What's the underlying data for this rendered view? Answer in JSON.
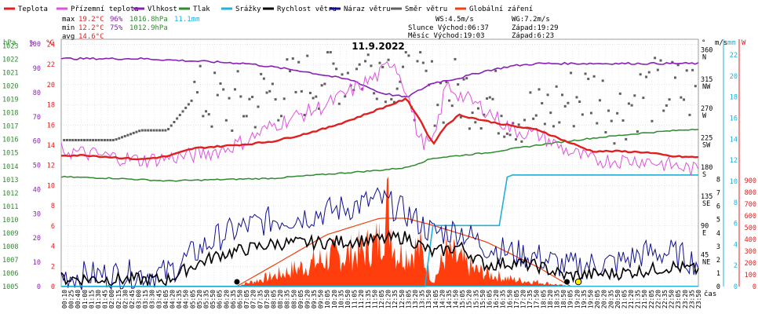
{
  "title": "11.9.2022",
  "legend": [
    {
      "label": "Teplota",
      "color": "#e02020"
    },
    {
      "label": "Přízemní teplota",
      "color": "#e050e0"
    },
    {
      "label": "Vlhkost",
      "color": "#8a1fb8"
    },
    {
      "label": "Tlak",
      "color": "#2e8b2e"
    },
    {
      "label": "Srážky",
      "color": "#20b0d8"
    },
    {
      "label": "Rychlost větru",
      "color": "#000000"
    },
    {
      "label": "Náraz větru",
      "color": "#101090"
    },
    {
      "label": "Směr větru",
      "color": "#606060"
    },
    {
      "label": "Globální záření",
      "color": "#f04010"
    }
  ],
  "stats": {
    "max_label": "max",
    "max_temp": "19.2°C",
    "max_hum": "96%",
    "max_press": "1016.8hPa",
    "rain_total": "11.1mm",
    "min_label": "min",
    "min_temp": "12.2°C",
    "min_hum": "75%",
    "min_press": "1012.9hPa",
    "avg_label": "avg",
    "avg_temp": "14.6°C"
  },
  "wind_info": {
    "ws": "WS:4.5m/s",
    "wg": "WG:7.2m/s",
    "sun_rise": "Slunce Východ:06:37",
    "sun_set": "Západ:19:29",
    "moon_rise": "Měsíc  Východ:19:03",
    "moon_set": "Západ:6:23"
  },
  "axes": {
    "unit_hpa": "hPa",
    "unit_pct": "%",
    "unit_c": "°C",
    "unit_deg": "°",
    "unit_ms": "m/s",
    "unit_mm": "mm",
    "unit_w": "W",
    "xlabel": "čas",
    "hpa_ticks": [
      "1023",
      "1022",
      "1021",
      "1020",
      "1019",
      "1018",
      "1017",
      "1016",
      "1015",
      "1014",
      "1013",
      "1012",
      "1011",
      "1010",
      "1009",
      "1008",
      "1007",
      "1006",
      "1005"
    ],
    "pct_ticks": [
      "100",
      "90",
      "80",
      "70",
      "60",
      "50",
      "40",
      "30",
      "20",
      "10",
      "0"
    ],
    "c_ticks": [
      "24",
      "22",
      "20",
      "18",
      "16",
      "14",
      "12",
      "10",
      "8",
      "6",
      "4",
      "2",
      "0"
    ],
    "dir_ticks": [
      {
        "v": "360",
        "d": "N"
      },
      {
        "v": "315",
        "d": "NW"
      },
      {
        "v": "270",
        "d": "W"
      },
      {
        "v": "225",
        "d": "SW"
      },
      {
        "v": "180",
        "d": "S"
      },
      {
        "v": "135",
        "d": "SE"
      },
      {
        "v": "90",
        "d": "E"
      },
      {
        "v": "45",
        "d": "NE"
      }
    ],
    "ms_ticks": [
      "8",
      "7",
      "6",
      "5",
      "4",
      "3",
      "2",
      "1",
      "0"
    ],
    "mm_ticks": [
      "22",
      "20",
      "18",
      "16",
      "14",
      "12",
      "10",
      "8",
      "6",
      "4",
      "2",
      "0"
    ],
    "w_ticks": [
      "900",
      "800",
      "700",
      "600",
      "500",
      "400",
      "300",
      "200",
      "100",
      "0"
    ],
    "time_ticks": [
      "00:10",
      "00:25",
      "00:40",
      "01:00",
      "01:15",
      "01:30",
      "01:45",
      "02:00",
      "02:15",
      "02:30",
      "02:45",
      "03:00",
      "03:15",
      "03:30",
      "03:45",
      "04:05",
      "04:20",
      "04:35",
      "04:50",
      "05:05",
      "05:20",
      "05:35",
      "05:50",
      "06:05",
      "06:20",
      "06:35",
      "06:50",
      "07:05",
      "07:20",
      "07:35",
      "07:50",
      "08:05",
      "08:20",
      "08:35",
      "08:50",
      "09:05",
      "09:20",
      "09:35",
      "09:50",
      "10:05",
      "10:20",
      "10:35",
      "10:50",
      "11:05",
      "11:20",
      "11:35",
      "11:50",
      "12:05",
      "12:20",
      "12:35",
      "12:50",
      "13:05",
      "13:20",
      "13:35",
      "13:50",
      "14:05",
      "14:20",
      "14:35",
      "14:50",
      "15:05",
      "15:20",
      "15:35",
      "15:50",
      "16:05",
      "16:20",
      "16:35",
      "16:50",
      "17:05",
      "17:20",
      "17:35",
      "17:50",
      "18:05",
      "18:20",
      "18:35",
      "18:50",
      "19:05",
      "19:20",
      "19:35",
      "19:50",
      "20:05",
      "20:20",
      "20:35",
      "20:50",
      "21:05",
      "21:20",
      "21:35",
      "21:50",
      "22:05",
      "22:20",
      "22:35",
      "22:50",
      "23:05",
      "23:20",
      "23:35",
      "23:50"
    ]
  },
  "chart_data": {
    "type": "line",
    "title": "11.9.2022",
    "x_unit": "hours",
    "x_range": [
      0,
      24
    ],
    "temperature_c": [
      [
        0,
        13.0
      ],
      [
        1,
        13.0
      ],
      [
        2,
        12.8
      ],
      [
        3,
        12.6
      ],
      [
        4,
        12.9
      ],
      [
        5,
        13.7
      ],
      [
        6,
        13.9
      ],
      [
        7,
        14.1
      ],
      [
        8,
        14.4
      ],
      [
        9,
        15.0
      ],
      [
        10,
        15.7
      ],
      [
        11,
        16.6
      ],
      [
        12,
        17.6
      ],
      [
        13,
        18.6
      ],
      [
        13.5,
        16.6
      ],
      [
        14,
        14.1
      ],
      [
        14.5,
        16.0
      ],
      [
        15,
        17.0
      ],
      [
        16,
        16.4
      ],
      [
        17,
        15.9
      ],
      [
        18,
        15.5
      ],
      [
        19,
        14.4
      ],
      [
        20,
        13.4
      ],
      [
        21,
        13.4
      ],
      [
        22,
        13.3
      ],
      [
        23,
        12.9
      ],
      [
        24,
        12.8
      ]
    ],
    "ground_temp_c": [
      [
        0,
        13.5
      ],
      [
        3,
        12.5
      ],
      [
        5,
        13.0
      ],
      [
        6,
        13.5
      ],
      [
        7,
        14.5
      ],
      [
        8,
        16.0
      ],
      [
        9,
        17.0
      ],
      [
        10,
        18.0
      ],
      [
        11,
        19.5
      ],
      [
        12,
        21.0
      ],
      [
        12.5,
        22.5
      ],
      [
        13,
        19.5
      ],
      [
        13.5,
        14.5
      ],
      [
        14,
        14.0
      ],
      [
        14.5,
        20.0
      ],
      [
        15,
        19.0
      ],
      [
        16,
        17.5
      ],
      [
        17,
        15.5
      ],
      [
        18,
        15.0
      ],
      [
        19,
        13.5
      ],
      [
        20,
        12.5
      ],
      [
        22,
        12.5
      ],
      [
        23,
        12.0
      ],
      [
        24,
        11.5
      ]
    ],
    "humidity_pct": [
      [
        0,
        94
      ],
      [
        3,
        94
      ],
      [
        5,
        93
      ],
      [
        7,
        92
      ],
      [
        9,
        89
      ],
      [
        11,
        85
      ],
      [
        12,
        80
      ],
      [
        13,
        78
      ],
      [
        14,
        84
      ],
      [
        15,
        86
      ],
      [
        16,
        89
      ],
      [
        17,
        91
      ],
      [
        18,
        92
      ],
      [
        20,
        92
      ],
      [
        22,
        92
      ],
      [
        24,
        92
      ]
    ],
    "pressure_hpa": [
      [
        0,
        1013.2
      ],
      [
        2,
        1013.1
      ],
      [
        4,
        1012.9
      ],
      [
        6,
        1013.0
      ],
      [
        8,
        1013.1
      ],
      [
        10,
        1013.4
      ],
      [
        12,
        1013.7
      ],
      [
        13,
        1013.9
      ],
      [
        14,
        1014.6
      ],
      [
        15,
        1014.8
      ],
      [
        16,
        1015.0
      ],
      [
        17,
        1015.3
      ],
      [
        18,
        1015.6
      ],
      [
        20,
        1016.1
      ],
      [
        22,
        1016.5
      ],
      [
        24,
        1016.8
      ]
    ],
    "rain_mm": [
      [
        0,
        0
      ],
      [
        13.7,
        0
      ],
      [
        14,
        5.8
      ],
      [
        16.5,
        5.8
      ],
      [
        16.8,
        10.4
      ],
      [
        17,
        10.6
      ],
      [
        24,
        10.6
      ]
    ],
    "wind_speed_ms": [
      [
        0,
        0.6
      ],
      [
        4,
        0.5
      ],
      [
        5,
        1.6
      ],
      [
        6,
        2.4
      ],
      [
        8,
        3.2
      ],
      [
        10,
        3.3
      ],
      [
        11,
        3.4
      ],
      [
        12,
        3.5
      ],
      [
        13,
        3.7
      ],
      [
        14,
        2.5
      ],
      [
        15,
        3.0
      ],
      [
        16,
        1.6
      ],
      [
        17,
        1.8
      ],
      [
        18,
        1.5
      ],
      [
        19,
        0.8
      ],
      [
        21,
        1.0
      ],
      [
        22,
        1.2
      ],
      [
        23,
        1.5
      ],
      [
        24,
        1.2
      ]
    ],
    "wind_gust_ms": [
      [
        0,
        0.8
      ],
      [
        4,
        1.0
      ],
      [
        5,
        2.5
      ],
      [
        6,
        3.8
      ],
      [
        7,
        4.5
      ],
      [
        8,
        5.0
      ],
      [
        9,
        5.2
      ],
      [
        10,
        5.6
      ],
      [
        11,
        6.0
      ],
      [
        12,
        6.5
      ],
      [
        13,
        5.5
      ],
      [
        14,
        4.0
      ],
      [
        15,
        4.2
      ],
      [
        16,
        3.0
      ],
      [
        17,
        2.5
      ],
      [
        18,
        2.2
      ],
      [
        19,
        1.5
      ],
      [
        21,
        1.8
      ],
      [
        22,
        2.5
      ],
      [
        23,
        2.5
      ],
      [
        24,
        1.8
      ]
    ],
    "wind_dir_deg": [
      [
        0,
        225
      ],
      [
        1,
        225
      ],
      [
        2,
        225
      ],
      [
        3,
        240
      ],
      [
        4,
        240
      ],
      [
        5,
        290
      ],
      [
        6,
        280
      ],
      [
        7,
        280
      ],
      [
        8,
        300
      ],
      [
        9,
        305
      ],
      [
        10,
        330
      ],
      [
        11,
        330
      ],
      [
        12,
        345
      ],
      [
        13,
        315
      ],
      [
        14,
        300
      ],
      [
        15,
        300
      ],
      [
        16,
        290
      ],
      [
        17,
        270
      ],
      [
        18,
        260
      ],
      [
        19,
        285
      ],
      [
        20,
        300
      ],
      [
        21,
        270
      ],
      [
        22,
        300
      ],
      [
        23,
        300
      ],
      [
        24,
        300
      ]
    ],
    "radiation_wm2": [
      [
        0,
        0
      ],
      [
        6.6,
        0
      ],
      [
        7,
        40
      ],
      [
        8,
        120
      ],
      [
        9,
        220
      ],
      [
        10,
        320
      ],
      [
        11,
        380
      ],
      [
        11.5,
        420
      ],
      [
        12,
        520
      ],
      [
        12.3,
        900
      ],
      [
        12.6,
        400
      ],
      [
        13,
        380
      ],
      [
        13.5,
        450
      ],
      [
        14,
        50
      ],
      [
        14.5,
        380
      ],
      [
        15,
        300
      ],
      [
        15.5,
        200
      ],
      [
        16,
        150
      ],
      [
        17,
        80
      ],
      [
        18,
        50
      ],
      [
        18.5,
        30
      ],
      [
        19.2,
        0
      ],
      [
        24,
        0
      ]
    ],
    "clear_sky_wm2": [
      [
        6.6,
        0
      ],
      [
        8,
        180
      ],
      [
        10,
        440
      ],
      [
        12,
        580
      ],
      [
        13,
        580
      ],
      [
        14,
        520
      ],
      [
        16,
        380
      ],
      [
        18,
        160
      ],
      [
        19.2,
        0
      ]
    ]
  }
}
